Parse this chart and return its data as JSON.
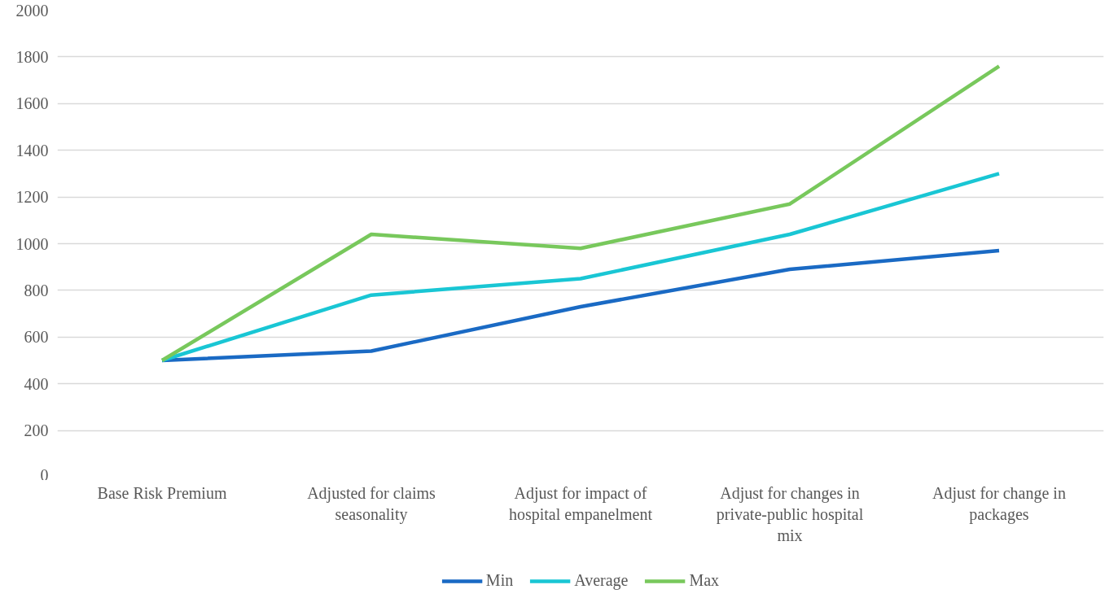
{
  "chart_data": {
    "type": "line",
    "categories": [
      "Base Risk Premium",
      "Adjusted for claims seasonality",
      "Adjust for impact of hospital empanelment",
      "Adjust for changes in private-public hospital mix",
      "Adjust for change in packages"
    ],
    "series": [
      {
        "name": "Min",
        "color": "#1a6ac4",
        "values": [
          500,
          540,
          730,
          890,
          970
        ]
      },
      {
        "name": "Average",
        "color": "#19c6d4",
        "values": [
          500,
          780,
          850,
          1040,
          1300
        ]
      },
      {
        "name": "Max",
        "color": "#78c85c",
        "values": [
          500,
          1040,
          980,
          1170,
          1760
        ]
      }
    ],
    "ylim": [
      0,
      2000
    ],
    "yticks": [
      0,
      200,
      400,
      600,
      800,
      1000,
      1200,
      1400,
      1600,
      1800,
      2000
    ],
    "grid": "y",
    "legend": "bottom",
    "marker": "none",
    "line_style": "solid"
  }
}
